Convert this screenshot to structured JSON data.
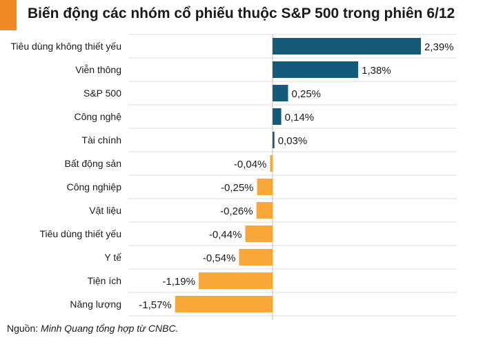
{
  "title": "Biến động các nhóm cổ phiếu thuộc S&P 500 trong phiên 6/12",
  "source_prefix": "Nguồn: ",
  "source_text": "Minh Quang tổng hợp từ CNBC.",
  "colors": {
    "positive": "#145a78",
    "negative": "#f7a839",
    "accent": "#ef8a24",
    "grid": "#dcdcdc",
    "axis": "#bdbdbd"
  },
  "chart_data": {
    "type": "bar",
    "orientation": "horizontal",
    "title": "Biến động các nhóm cổ phiếu thuộc S&P 500 trong phiên 6/12",
    "unit": "%",
    "categories": [
      "Tiêu dùng không thiết yếu",
      "Viễn thông",
      "S&P 500",
      "Công nghệ",
      "Tài chính",
      "Bất động sản",
      "Công nghiệp",
      "Vật liệu",
      "Tiêu dùng thiết yếu",
      "Y tế",
      "Tiện ích",
      "Năng lượng"
    ],
    "values": [
      2.39,
      1.38,
      0.25,
      0.14,
      0.03,
      -0.04,
      -0.25,
      -0.26,
      -0.44,
      -0.54,
      -1.19,
      -1.57
    ],
    "labels": [
      "2,39%",
      "1,38%",
      "0,25%",
      "0,14%",
      "0,03%",
      "-0,04%",
      "-0,25%",
      "-0,26%",
      "-0,44%",
      "-0,54%",
      "-1,19%",
      "-1,57%"
    ],
    "xlim": [
      -2.1,
      2.39
    ],
    "grid": true,
    "legend": "none"
  }
}
